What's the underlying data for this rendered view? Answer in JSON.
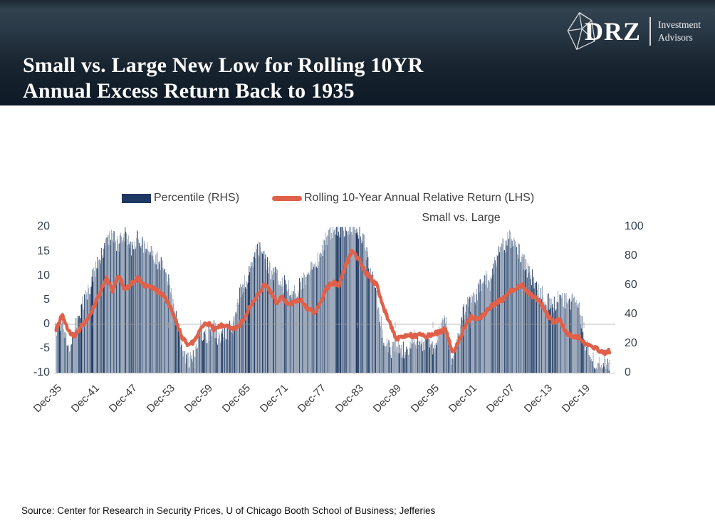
{
  "header": {
    "title_line1": "Small vs. Large New Low for Rolling 10YR",
    "title_line2": "Annual Excess Return Back to 1935",
    "logo": {
      "brand": "DRZ",
      "firm_line1": "Investment",
      "firm_line2": "Advisors"
    }
  },
  "footer": {
    "source": "Source: Center for Research in Security Prices, U of Chicago Booth School of Business; Jefferies"
  },
  "chart_data": {
    "type": "combo",
    "annotation": "Small vs. Large",
    "legend": [
      {
        "label": "Percentile (RHS)",
        "type": "bar",
        "color": "#1F3864"
      },
      {
        "label": "Rolling 10-Year Annual Relative Return (LHS)",
        "type": "line",
        "color": "#E0604A"
      }
    ],
    "colors": {
      "bar_light": "#93A1B5",
      "bar_dark": "#1E3962",
      "line": "#E0604A",
      "zero_line": "#9c9c9c",
      "axis_line": "#c4c4c4"
    },
    "left_axis": {
      "ticks": [
        20,
        15,
        10,
        5,
        0,
        -5,
        -10
      ],
      "min": -10,
      "max": 20
    },
    "right_axis": {
      "ticks": [
        100,
        80,
        60,
        40,
        20,
        0
      ],
      "min": 0,
      "max": 100
    },
    "x_ticks": [
      "Dec-35",
      "Dec-41",
      "Dec-47",
      "Dec-53",
      "Dec-59",
      "Dec-65",
      "Dec-71",
      "Dec-77",
      "Dec-83",
      "Dec-89",
      "Dec-95",
      "Dec-01",
      "Dec-07",
      "Dec-13",
      "Dec-19"
    ],
    "x_tick_interval_years": 6,
    "series": [
      {
        "name": "Percentile (RHS)",
        "type": "bar",
        "axis": "right",
        "start_year": 1936,
        "step_years": 1,
        "values": [
          28,
          35,
          18,
          30,
          45,
          55,
          68,
          80,
          90,
          92,
          88,
          94,
          85,
          93,
          87,
          82,
          78,
          72,
          60,
          38,
          18,
          8,
          10,
          30,
          24,
          32,
          22,
          28,
          30,
          52,
          62,
          72,
          88,
          82,
          70,
          68,
          62,
          58,
          55,
          60,
          68,
          72,
          80,
          92,
          97,
          99,
          100,
          100,
          98,
          90,
          68,
          52,
          25,
          15,
          20,
          15,
          18,
          25,
          18,
          22,
          18,
          28,
          36,
          8,
          28,
          44,
          48,
          55,
          66,
          62,
          78,
          86,
          92,
          89,
          78,
          70,
          62,
          55,
          50,
          45,
          52,
          48,
          50,
          48,
          22,
          10,
          6,
          8,
          3
        ]
      },
      {
        "name": "Rolling 10-Year Annual Relative Return (LHS)",
        "type": "line",
        "axis": "left",
        "start_year": 1936,
        "step_years": 1,
        "values": [
          -1,
          2,
          -1.5,
          -2.5,
          -0.5,
          1,
          3.5,
          6.5,
          9.5,
          7,
          10,
          7,
          8.5,
          9.5,
          8,
          7.5,
          7,
          6,
          4,
          1,
          -2.5,
          -4.5,
          -3.5,
          -1,
          0.5,
          -1,
          -0.5,
          0,
          -1,
          -0.5,
          1.5,
          4,
          6,
          8,
          7,
          4.5,
          5.5,
          4,
          4.5,
          5,
          3,
          2.5,
          4,
          7.5,
          8.5,
          8,
          12,
          15,
          13.5,
          11,
          9.5,
          8,
          3.5,
          0.5,
          -3,
          -2.5,
          -2,
          -2.5,
          -2,
          -2.5,
          -2,
          -1.5,
          -1,
          -6,
          -3.5,
          -0.5,
          1.5,
          1,
          2,
          3.5,
          4.5,
          5,
          6.5,
          7.5,
          8,
          6.5,
          5.5,
          4.5,
          2,
          0.5,
          1,
          -1.5,
          -2.5,
          -2.5,
          -4,
          -4.5,
          -5,
          -6,
          -5.5
        ]
      }
    ]
  }
}
